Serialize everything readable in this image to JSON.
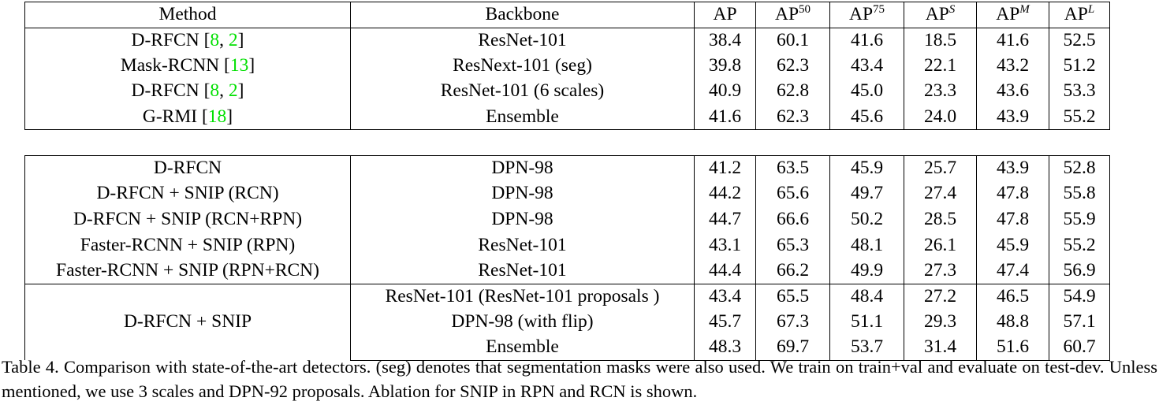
{
  "table": {
    "headers": {
      "method": "Method",
      "backbone": "Backbone",
      "ap": "AP",
      "ap50_base": "AP",
      "ap50_sup": "50",
      "ap75_base": "AP",
      "ap75_sup": "75",
      "aps_base": "AP",
      "aps_sup": "S",
      "apm_base": "AP",
      "apm_sup": "M",
      "apl_base": "AP",
      "apl_sup": "L"
    },
    "group1": [
      {
        "method": "D-RFCN [",
        "cite_a": "8",
        "sep": ", ",
        "cite_b": "2",
        "close": "]",
        "backbone": "ResNet-101",
        "ap": "38.4",
        "ap50": "60.1",
        "ap75": "41.6",
        "aps": "18.5",
        "apm": "41.6",
        "apl": "52.5"
      },
      {
        "method": "Mask-RCNN [",
        "cite_a": "13",
        "close": "]",
        "backbone": "ResNext-101 (seg)",
        "ap": "39.8",
        "ap50": "62.3",
        "ap75": "43.4",
        "aps": "22.1",
        "apm": "43.2",
        "apl": "51.2"
      },
      {
        "method": "D-RFCN [",
        "cite_a": "8",
        "sep": ", ",
        "cite_b": "2",
        "close": "]",
        "backbone": "ResNet-101 (6 scales)",
        "ap": "40.9",
        "ap50": "62.8",
        "ap75": "45.0",
        "aps": "23.3",
        "apm": "43.6",
        "apl": "53.3"
      },
      {
        "method": "G-RMI [",
        "cite_a": "18",
        "close": "]",
        "backbone": "Ensemble",
        "ap": "41.6",
        "ap50": "62.3",
        "ap75": "45.6",
        "aps": "24.0",
        "apm": "43.9",
        "apl": "55.2"
      }
    ],
    "group2": [
      {
        "method": "D-RFCN",
        "backbone": "DPN-98",
        "ap": "41.2",
        "ap50": "63.5",
        "ap75": "45.9",
        "aps": "25.7",
        "apm": "43.9",
        "apl": "52.8"
      },
      {
        "method": "D-RFCN + SNIP (RCN)",
        "backbone": "DPN-98",
        "ap": "44.2",
        "ap50": "65.6",
        "ap75": "49.7",
        "aps": "27.4",
        "apm": "47.8",
        "apl": "55.8"
      },
      {
        "method": "D-RFCN + SNIP (RCN+RPN)",
        "backbone": "DPN-98",
        "ap": "44.7",
        "ap50": "66.6",
        "ap75": "50.2",
        "aps": "28.5",
        "apm": "47.8",
        "apl": "55.9"
      },
      {
        "method": "Faster-RCNN + SNIP (RPN)",
        "backbone": "ResNet-101",
        "ap": "43.1",
        "ap50": "65.3",
        "ap75": "48.1",
        "aps": "26.1",
        "apm": "45.9",
        "apl": "55.2"
      },
      {
        "method": "Faster-RCNN + SNIP (RPN+RCN)",
        "backbone": "ResNet-101",
        "ap": "44.4",
        "ap50": "66.2",
        "ap75": "49.9",
        "aps": "27.3",
        "apm": "47.4",
        "apl": "56.9"
      }
    ],
    "group3": {
      "method": "D-RFCN + SNIP",
      "rows": [
        {
          "backbone": "ResNet-101 (ResNet-101 proposals )",
          "ap": "43.4",
          "ap50": "65.5",
          "ap75": "48.4",
          "aps": "27.2",
          "apm": "46.5",
          "apl": "54.9"
        },
        {
          "backbone": "DPN-98 (with flip)",
          "ap": "45.7",
          "ap50": "67.3",
          "ap75": "51.1",
          "aps": "29.3",
          "apm": "48.8",
          "apl": "57.1"
        },
        {
          "backbone": "Ensemble",
          "ap": "48.3",
          "ap50": "69.7",
          "ap75": "53.7",
          "aps": "31.4",
          "apm": "51.6",
          "apl": "60.7"
        }
      ]
    }
  },
  "caption": "Table 4. Comparison with state-of-the-art detectors.  (seg) denotes that segmentation masks were also used.  We train on train+val and evaluate on test-dev. Unless mentioned, we use 3 scales and DPN-92 proposals. Ablation for SNIP in RPN and RCN is shown.",
  "colors": {
    "citation": "#00e000",
    "text": "#000000"
  }
}
